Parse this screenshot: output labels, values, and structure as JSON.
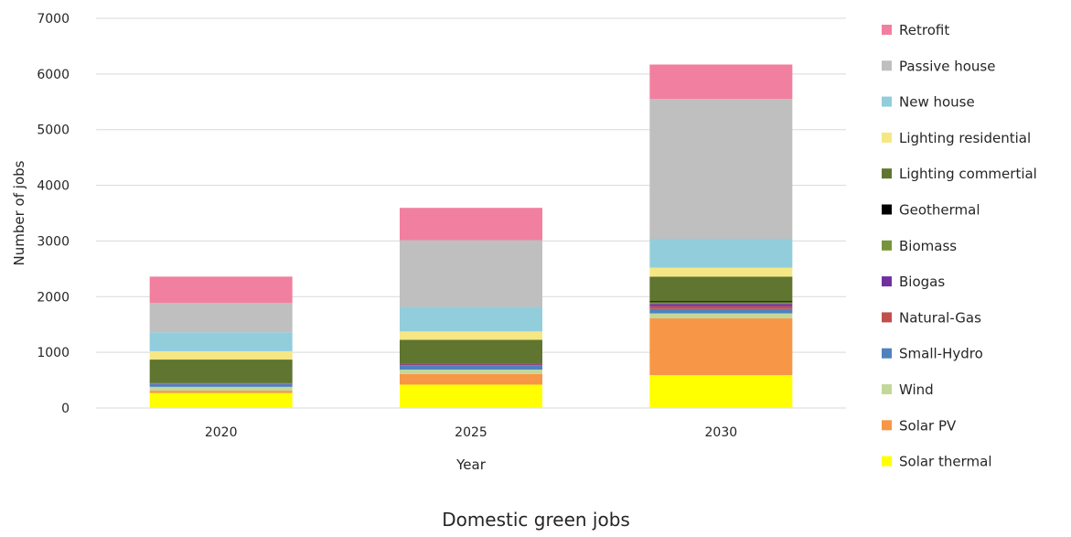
{
  "chart_data": {
    "type": "bar",
    "stacked": true,
    "title": "Domestic green jobs",
    "xlabel": "Year",
    "ylabel": "Number of jobs",
    "ylim": [
      0,
      7000
    ],
    "yticks": [
      0,
      1000,
      2000,
      3000,
      4000,
      5000,
      6000,
      7000
    ],
    "grid": true,
    "legend_position": "right",
    "categories": [
      "2020",
      "2025",
      "2030"
    ],
    "series": [
      {
        "name": "Solar thermal",
        "color": "#FFFF00",
        "values": [
          270,
          420,
          590
        ]
      },
      {
        "name": "Solar PV",
        "color": "#F79646",
        "values": [
          40,
          190,
          1020
        ]
      },
      {
        "name": "Wind",
        "color": "#C4D79B",
        "values": [
          70,
          80,
          90
        ]
      },
      {
        "name": "Small-Hydro",
        "color": "#4F81BD",
        "values": [
          50,
          80,
          80
        ]
      },
      {
        "name": "Natural-Gas",
        "color": "#C0504D",
        "values": [
          10,
          10,
          50
        ]
      },
      {
        "name": "Biogas",
        "color": "#7030A0",
        "values": [
          5,
          10,
          40
        ]
      },
      {
        "name": "Biomass",
        "color": "#77933C",
        "values": [
          10,
          10,
          30
        ]
      },
      {
        "name": "Geothermal",
        "color": "#000000",
        "values": [
          5,
          5,
          20
        ]
      },
      {
        "name": "Lighting commertial",
        "color": "#5F7530",
        "values": [
          410,
          420,
          440
        ]
      },
      {
        "name": "Lighting residential",
        "color": "#F6E785",
        "values": [
          150,
          150,
          160
        ]
      },
      {
        "name": "New house",
        "color": "#92CDDC",
        "values": [
          340,
          440,
          520
        ]
      },
      {
        "name": "Passive house",
        "color": "#BFBFBF",
        "values": [
          530,
          1200,
          2510
        ]
      },
      {
        "name": "Retrofit",
        "color": "#F17F9F",
        "values": [
          470,
          580,
          620
        ]
      }
    ]
  }
}
